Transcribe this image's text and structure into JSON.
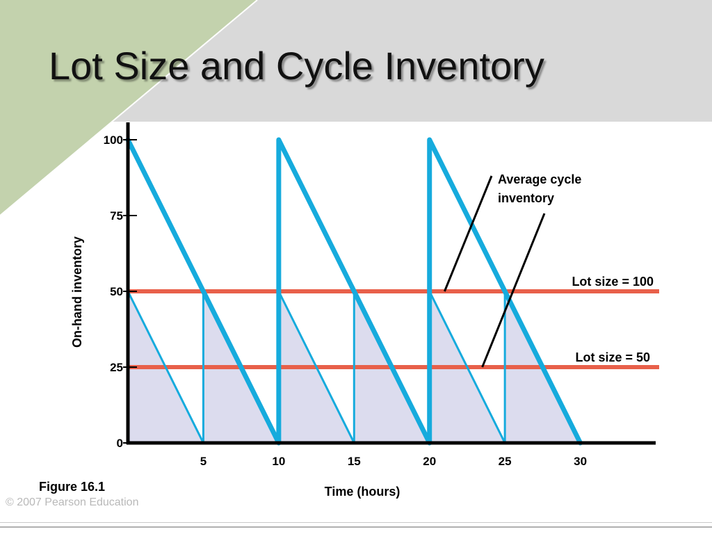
{
  "slide": {
    "title": "Lot Size and Cycle Inventory",
    "figure_caption": "Figure 16.1",
    "copyright": "© 2007 Pearson Education",
    "colors": {
      "header_band": "#d9d9d9",
      "corner_green": "#c3d2ad",
      "line_blue": "#16abdd",
      "ref_line_red": "#e8604a",
      "fill_lavender": "#dcdcee"
    }
  },
  "chart_data": {
    "type": "line",
    "xlabel": "Time (hours)",
    "ylabel": "On-hand inventory",
    "xlim": [
      0,
      35
    ],
    "ylim": [
      0,
      100
    ],
    "x_ticks": [
      5,
      10,
      15,
      20,
      25,
      30
    ],
    "y_ticks": [
      0,
      25,
      50,
      75,
      100
    ],
    "series": [
      {
        "name": "Lot size = 100",
        "points": [
          [
            0,
            100
          ],
          [
            10,
            0
          ],
          [
            10,
            100
          ],
          [
            20,
            0
          ],
          [
            20,
            100
          ],
          [
            30,
            0
          ]
        ]
      },
      {
        "name": "Lot size = 50",
        "points": [
          [
            0,
            50
          ],
          [
            5,
            0
          ],
          [
            5,
            50
          ],
          [
            10,
            0
          ],
          [
            10,
            50
          ],
          [
            15,
            0
          ],
          [
            15,
            50
          ],
          [
            20,
            0
          ],
          [
            20,
            50
          ],
          [
            25,
            0
          ],
          [
            25,
            50
          ],
          [
            30,
            0
          ]
        ]
      }
    ],
    "reference_lines": [
      {
        "y": 50,
        "label": "Lot size = 100"
      },
      {
        "y": 25,
        "label": "Lot size = 50"
      }
    ],
    "annotations": [
      {
        "text": "Average cycle inventory",
        "lines": [
          "Average cycle",
          "inventory"
        ],
        "points_to": [
          [
            21,
            50
          ],
          [
            23.5,
            25
          ]
        ]
      }
    ]
  }
}
